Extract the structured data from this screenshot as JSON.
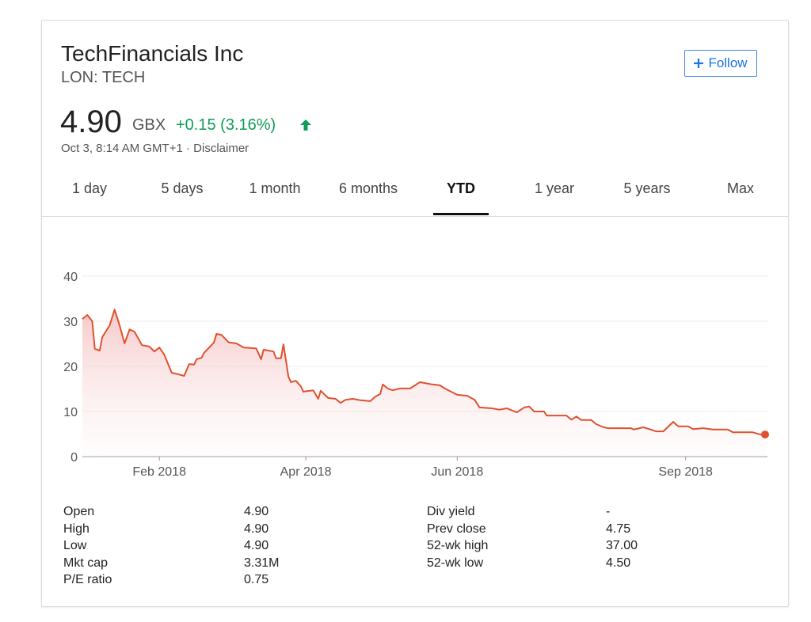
{
  "header": {
    "name": "TechFinancials Inc",
    "ticker": "LON: TECH"
  },
  "follow_button": "Follow",
  "quote": {
    "price": "4.90",
    "currency": "GBX",
    "change": "+0.15 (3.16%)",
    "timestamp": "Oct 3, 8:14 AM GMT+1",
    "separator": "·",
    "disclaimer": "Disclaimer"
  },
  "tabs": [
    "1 day",
    "5 days",
    "1 month",
    "6 months",
    "YTD",
    "1 year",
    "5 years",
    "Max"
  ],
  "selected_tab": 4,
  "chart_data": {
    "type": "line",
    "area": true,
    "color": "#e0502f",
    "x": [
      1,
      3,
      5,
      6,
      8,
      9,
      12,
      14,
      16,
      18,
      20,
      22,
      25,
      28,
      30,
      32,
      34,
      37,
      40,
      42,
      44,
      46,
      47,
      49,
      50,
      54,
      55,
      57,
      60,
      63,
      66,
      71,
      73,
      74,
      78,
      79,
      81,
      82,
      84,
      85,
      87,
      89,
      90,
      94,
      96,
      97,
      100,
      103,
      105,
      107,
      110,
      113,
      117,
      119,
      121,
      122,
      124,
      126,
      129,
      133,
      137,
      139,
      142,
      145,
      147,
      152,
      156,
      159,
      161,
      166,
      169,
      172,
      176,
      179,
      181,
      183,
      187,
      188,
      196,
      198,
      200,
      202,
      206,
      208,
      211,
      213,
      222,
      223,
      227,
      230,
      232,
      235,
      239,
      241,
      245,
      247,
      251,
      255,
      261,
      263,
      271,
      274,
      276
    ],
    "values": [
      30.5,
      31.4,
      30,
      23.9,
      23.5,
      26.5,
      29.1,
      32.6,
      29.1,
      25.1,
      28.2,
      27.7,
      24.7,
      24.4,
      23.3,
      24.2,
      22.6,
      18.6,
      18.2,
      17.9,
      20.5,
      20.4,
      21.6,
      21.9,
      23,
      25.3,
      27.2,
      27,
      25.3,
      25.1,
      24.2,
      24,
      21.6,
      23.7,
      23.3,
      21.8,
      21.8,
      24.9,
      17.7,
      16.5,
      16.8,
      15.6,
      14.4,
      14.7,
      12.8,
      14.6,
      13,
      12.8,
      11.9,
      12.6,
      12.8,
      12.5,
      12.3,
      13.3,
      13.9,
      16,
      15.1,
      14.7,
      15.1,
      15.1,
      16.5,
      16.3,
      16,
      15.8,
      15.1,
      13.7,
      13.5,
      12.6,
      10.9,
      10.7,
      10.4,
      10.7,
      9.8,
      10.9,
      11.1,
      10,
      10,
      9.1,
      9.1,
      8.2,
      8.9,
      8.1,
      8.1,
      7.2,
      6.5,
      6.3,
      6.3,
      6,
      6.5,
      6,
      5.6,
      5.6,
      7.7,
      6.7,
      6.7,
      6.1,
      6.3,
      6,
      6,
      5.4,
      5.4,
      4.9,
      4.9
    ],
    "xlim": [
      1,
      276
    ],
    "xticks": [
      {
        "value": 32,
        "label": "Feb 2018"
      },
      {
        "value": 91,
        "label": "Apr 2018"
      },
      {
        "value": 152,
        "label": "Jun 2018"
      },
      {
        "value": 244,
        "label": "Sep 2018"
      }
    ],
    "ylim": [
      0,
      40
    ],
    "yticks": [
      0,
      10,
      20,
      30,
      40
    ],
    "grid": true,
    "current_marker": true
  },
  "stats": {
    "left": [
      {
        "label": "Open",
        "value": "4.90"
      },
      {
        "label": "High",
        "value": "4.90"
      },
      {
        "label": "Low",
        "value": "4.90"
      },
      {
        "label": "Mkt cap",
        "value": "3.31M"
      },
      {
        "label": "P/E ratio",
        "value": "0.75"
      }
    ],
    "right": [
      {
        "label": "Div yield",
        "value": "-"
      },
      {
        "label": "Prev close",
        "value": "4.75"
      },
      {
        "label": "52-wk high",
        "value": "37.00"
      },
      {
        "label": "52-wk low",
        "value": "4.50"
      }
    ]
  }
}
